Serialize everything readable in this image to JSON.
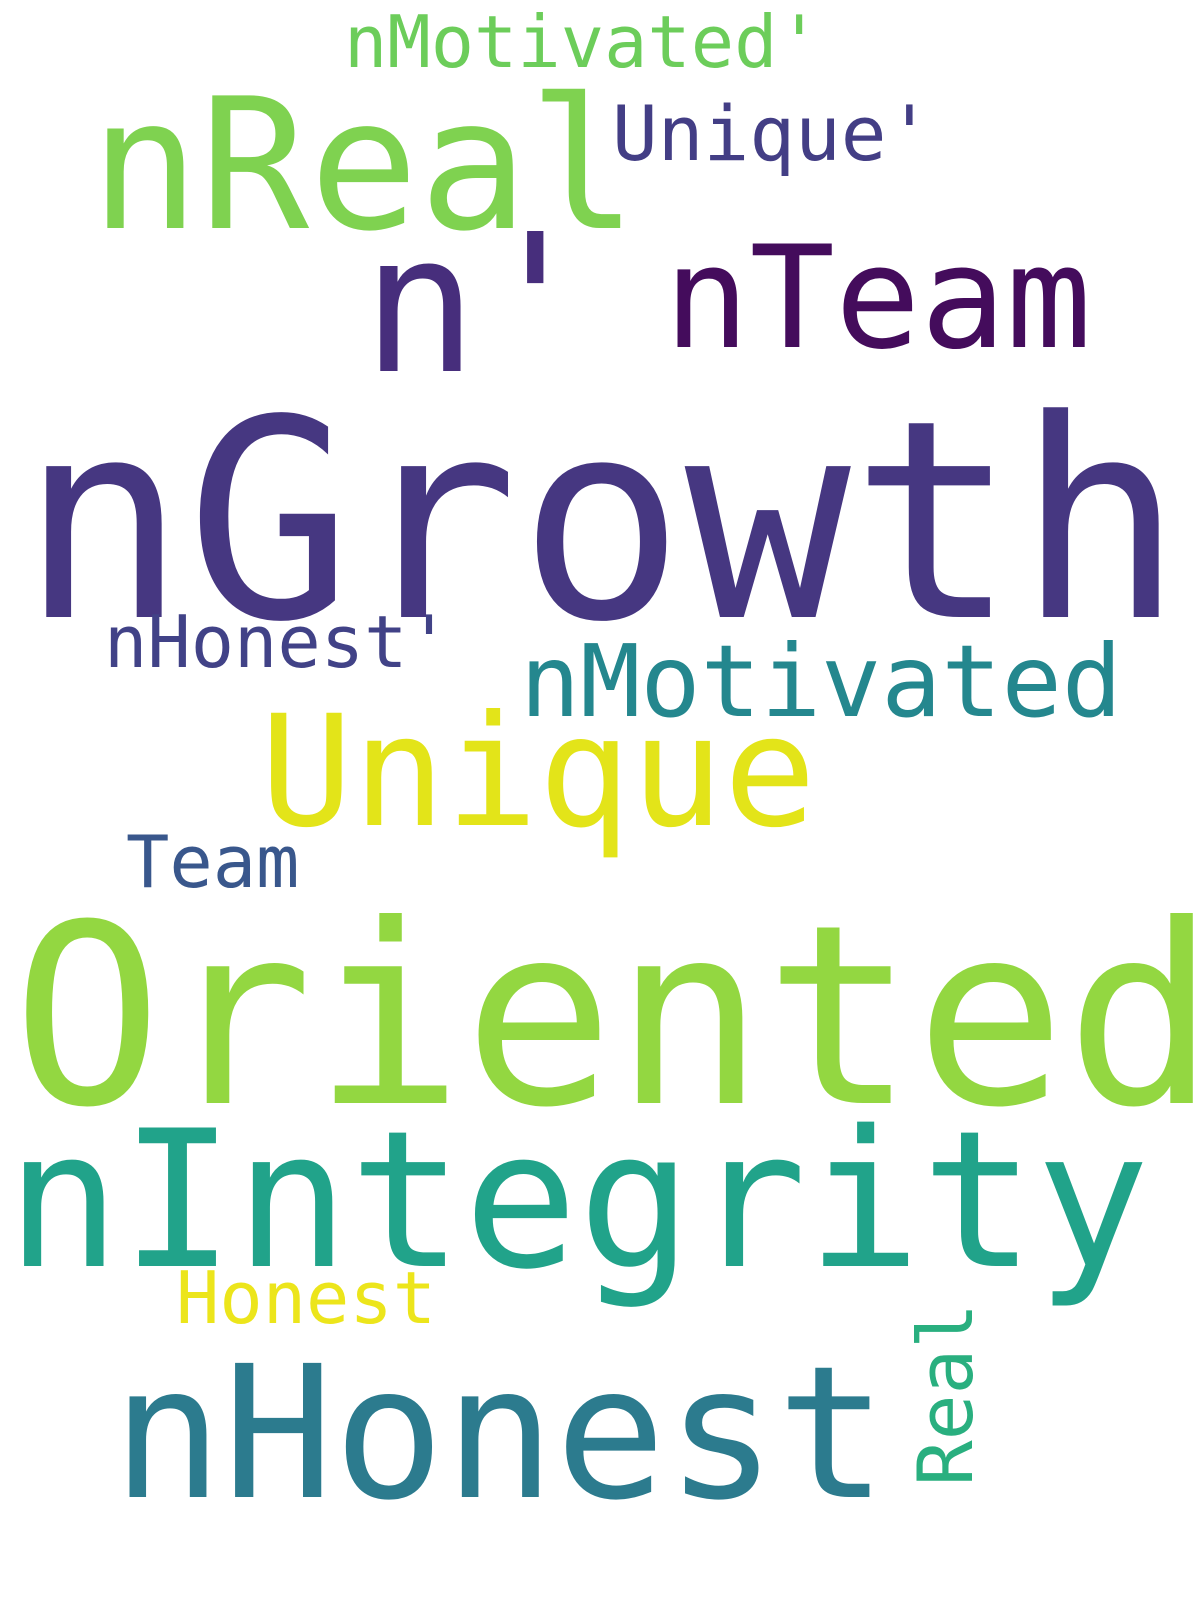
{
  "wordcloud": {
    "background": "#ffffff",
    "words": [
      {
        "text": "nGrowth",
        "color": "#463781",
        "orientation": "horizontal"
      },
      {
        "text": "Oriented",
        "color": "#93d741",
        "orientation": "horizontal"
      },
      {
        "text": "nIntegrity",
        "color": "#21a38a",
        "orientation": "horizontal"
      },
      {
        "text": "nHonest",
        "color": "#2c7b8e",
        "orientation": "horizontal"
      },
      {
        "text": "nReal",
        "color": "#7fd250",
        "orientation": "horizontal"
      },
      {
        "text": "nTeam",
        "color": "#440c5c",
        "orientation": "horizontal"
      },
      {
        "text": "n'",
        "color": "#472e7c",
        "orientation": "horizontal"
      },
      {
        "text": "Unique",
        "color": "#e3e419",
        "orientation": "horizontal"
      },
      {
        "text": "nMotivated",
        "color": "#24878e",
        "orientation": "horizontal"
      },
      {
        "text": "nMotivated'",
        "color": "#6ccd5a",
        "orientation": "horizontal"
      },
      {
        "text": "Unique'",
        "color": "#433e85",
        "orientation": "horizontal"
      },
      {
        "text": "nHonest'",
        "color": "#414287",
        "orientation": "horizontal"
      },
      {
        "text": "Team",
        "color": "#39578c",
        "orientation": "horizontal"
      },
      {
        "text": "Honest",
        "color": "#ece51b",
        "orientation": "horizontal"
      },
      {
        "text": "Real",
        "color": "#29af7f",
        "orientation": "vertical"
      }
    ]
  }
}
